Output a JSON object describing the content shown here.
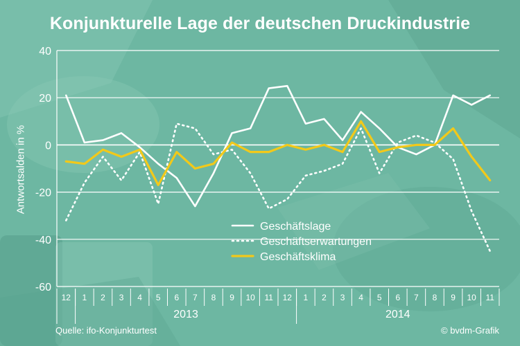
{
  "title": "Konjunkturelle Lage der deutschen Druckindustrie",
  "source": "Quelle: ifo-Konjunkturtest",
  "credit": "© bvdm-Grafik",
  "colors": {
    "background": "#6db7a2",
    "geschaeftslage": "#ffffff",
    "geschaeftserwartungen": "#ffffff",
    "geschaeftsklima": "#f2c91a"
  },
  "chart_data": {
    "type": "line",
    "title": "Konjunkturelle Lage der deutschen Druckindustrie",
    "xlabel": "",
    "ylabel": "Antwortsalden in %",
    "ylim": [
      -60,
      40
    ],
    "yticks": [
      -60,
      -40,
      -20,
      0,
      20,
      40
    ],
    "categories": [
      "12",
      "1",
      "2",
      "3",
      "4",
      "5",
      "6",
      "7",
      "8",
      "9",
      "10",
      "11",
      "12",
      "1",
      "2",
      "3",
      "4",
      "5",
      "6",
      "7",
      "8",
      "9",
      "10",
      "11"
    ],
    "year_labels": [
      "2013",
      "2014"
    ],
    "grid": true,
    "legend_placement": "center-right",
    "series": [
      {
        "name": "Geschäftslage",
        "style": "solid",
        "color": "#ffffff",
        "values": [
          21,
          1,
          2,
          5,
          -1,
          -8,
          -14,
          -26,
          -12,
          5,
          7,
          24,
          25,
          9,
          11,
          2,
          14,
          7,
          -1,
          -4,
          0,
          21,
          17,
          21
        ]
      },
      {
        "name": "Geschäftserwartungen",
        "style": "dotted",
        "color": "#ffffff",
        "values": [
          -32,
          -16,
          -5,
          -15,
          -3,
          -25,
          9,
          7,
          -4,
          -2,
          -12,
          -27,
          -23,
          -13,
          -11,
          -8,
          7,
          -12,
          1,
          4,
          1,
          -6,
          -28,
          -45
        ]
      },
      {
        "name": "Geschäftsklima",
        "style": "solid",
        "color": "#f2c91a",
        "values": [
          -7,
          -8,
          -2,
          -5,
          -2,
          -17,
          -3,
          -10,
          -8,
          1,
          -3,
          -3,
          0,
          -2,
          0,
          -3,
          10,
          -3,
          -1,
          0,
          0,
          7,
          -5,
          -15
        ]
      }
    ]
  }
}
